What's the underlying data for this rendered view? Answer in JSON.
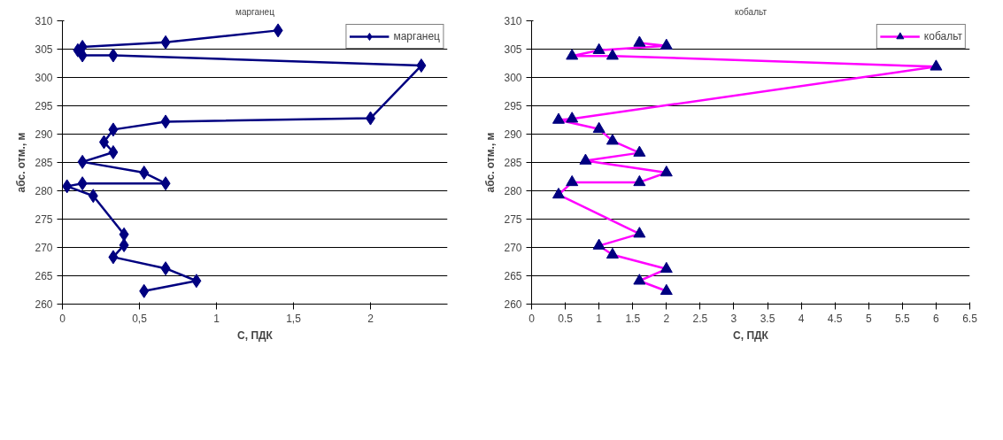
{
  "chart_data": [
    {
      "type": "line",
      "title": "марганец",
      "xlabel": "С, ПДК",
      "ylabel": "абс. отм., м",
      "xlim": [
        0,
        2.5
      ],
      "xticks": [
        0,
        {
          "value": 0.5,
          "label": "0,5"
        },
        1,
        {
          "value": 1.5,
          "label": "1,5"
        },
        2
      ],
      "ylim": [
        260,
        310
      ],
      "yticks": [
        260,
        265,
        270,
        275,
        280,
        285,
        290,
        295,
        300,
        305,
        310
      ],
      "grid": "y",
      "legend": "top right",
      "marker": "diamond",
      "line_style": "solid",
      "series": [
        {
          "name": "марганец",
          "color": "#000080",
          "x": [
            1.4,
            0.67,
            0.13,
            0.1,
            0.13,
            0.33,
            2.33,
            2.0,
            0.67,
            0.33,
            0.27,
            0.33,
            0.13,
            0.53,
            0.67,
            0.13,
            0.03,
            0.2,
            0.4,
            0.4,
            0.33,
            0.67,
            0.87,
            0.53
          ],
          "values": [
            308.3,
            306.2,
            305.4,
            304.8,
            303.9,
            303.9,
            302.1,
            292.8,
            292.2,
            290.8,
            288.6,
            286.8,
            285.1,
            283.2,
            281.3,
            281.3,
            280.8,
            279.1,
            272.3,
            270.4,
            268.3,
            266.3,
            264.1,
            262.3
          ]
        }
      ]
    },
    {
      "type": "line",
      "title": "кобальт",
      "xlabel": "С, ПДК",
      "ylabel": "абс. отм., м",
      "xlim": [
        0,
        6.5
      ],
      "xticks": [
        0,
        0.5,
        1,
        1.5,
        2,
        2.5,
        3,
        3.5,
        4,
        4.5,
        5,
        5.5,
        6,
        6.5
      ],
      "ylim": [
        260,
        310
      ],
      "yticks": [
        260,
        265,
        270,
        275,
        280,
        285,
        290,
        295,
        300,
        305,
        310
      ],
      "grid": "y",
      "legend": "top right",
      "marker": "triangle",
      "line_style": "solid",
      "series": [
        {
          "name": "кобальт",
          "color": "#ff00ff",
          "colors": [
            "#000080",
            "#000080",
            "#000080",
            "#000080",
            "#000080",
            "#000080",
            "#000080",
            "#000080",
            "#000080",
            "#000080",
            "#000080",
            "#000080",
            "#000080",
            "#000080",
            "#000080",
            "#000080",
            "#000080",
            "#000080",
            "#000080",
            "#000080",
            "#000080",
            "#000080"
          ],
          "x": [
            1.6,
            2.0,
            1.0,
            0.6,
            1.2,
            6.0,
            0.6,
            0.4,
            1.0,
            1.2,
            1.6,
            0.8,
            2.0,
            1.6,
            0.6,
            0.4,
            1.6,
            1.0,
            1.2,
            2.0,
            1.6,
            2.0
          ],
          "values": [
            306.1,
            305.6,
            304.8,
            303.8,
            303.8,
            301.9,
            292.7,
            292.5,
            290.9,
            288.8,
            286.7,
            285.3,
            283.2,
            281.5,
            281.5,
            279.3,
            272.4,
            270.3,
            268.7,
            266.2,
            264.1,
            262.3
          ]
        }
      ]
    }
  ]
}
